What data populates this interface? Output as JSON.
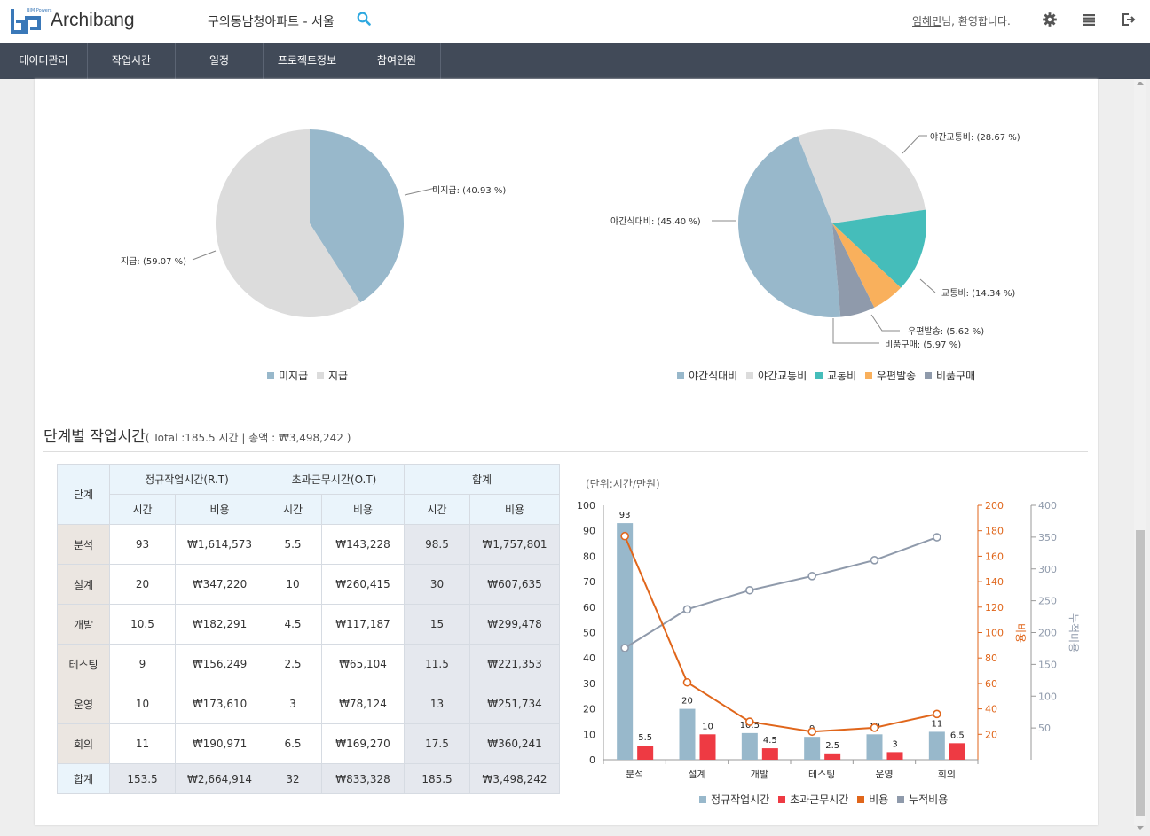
{
  "app": {
    "name": "Archibang",
    "logo_sub": "BIM Powers",
    "project": "구의동남청아파트 - 서울",
    "user_name": "임혜민",
    "greeting": "님, 환영합니다."
  },
  "nav": [
    "데이터관리",
    "작업시간",
    "일정",
    "프로젝트정보",
    "참여인원"
  ],
  "pie1": {
    "labels": [
      "미지급: (40.93 %)",
      "지급: (59.07 %)"
    ],
    "legend": [
      "미지급",
      "지급"
    ],
    "values": [
      40.93,
      59.07
    ],
    "colors": [
      "#98b8cb",
      "#dcdcdc"
    ]
  },
  "pie2": {
    "labels": [
      "야간식대비: (45.40 %)",
      "야간교통비: (28.67 %)",
      "교통비: (14.34 %)",
      "우편발송: (5.62 %)",
      "비품구매: (5.97 %)"
    ],
    "legend": [
      "야간식대비",
      "야간교통비",
      "교통비",
      "우편발송",
      "비품구매"
    ],
    "values": [
      45.4,
      28.67,
      14.34,
      5.62,
      5.97
    ],
    "colors": [
      "#98b8cb",
      "#dcdcdc",
      "#45bdba",
      "#f9b05c",
      "#8f9aab"
    ]
  },
  "section": {
    "title": "단계별 작업시간",
    "subtitle": "( Total :185.5 시간 | 총액 : ₩3,498,242 )"
  },
  "table": {
    "h_stage": "단계",
    "h_rt": "정규작업시간(R.T)",
    "h_ot": "초과근무시간(O.T)",
    "h_sum": "합계",
    "h_time": "시간",
    "h_cost": "비용",
    "rows": [
      {
        "stage": "분석",
        "rt_h": "93",
        "rt_c": "₩1,614,573",
        "ot_h": "5.5",
        "ot_c": "₩143,228",
        "s_h": "98.5",
        "s_c": "₩1,757,801"
      },
      {
        "stage": "설계",
        "rt_h": "20",
        "rt_c": "₩347,220",
        "ot_h": "10",
        "ot_c": "₩260,415",
        "s_h": "30",
        "s_c": "₩607,635"
      },
      {
        "stage": "개발",
        "rt_h": "10.5",
        "rt_c": "₩182,291",
        "ot_h": "4.5",
        "ot_c": "₩117,187",
        "s_h": "15",
        "s_c": "₩299,478"
      },
      {
        "stage": "테스팅",
        "rt_h": "9",
        "rt_c": "₩156,249",
        "ot_h": "2.5",
        "ot_c": "₩65,104",
        "s_h": "11.5",
        "s_c": "₩221,353"
      },
      {
        "stage": "운영",
        "rt_h": "10",
        "rt_c": "₩173,610",
        "ot_h": "3",
        "ot_c": "₩78,124",
        "s_h": "13",
        "s_c": "₩251,734"
      },
      {
        "stage": "회의",
        "rt_h": "11",
        "rt_c": "₩190,971",
        "ot_h": "6.5",
        "ot_c": "₩169,270",
        "s_h": "17.5",
        "s_c": "₩360,241"
      }
    ],
    "total": {
      "stage": "합계",
      "rt_h": "153.5",
      "rt_c": "₩2,664,914",
      "ot_h": "32",
      "ot_c": "₩833,328",
      "s_h": "185.5",
      "s_c": "₩3,498,242"
    }
  },
  "chart_data": {
    "type": "bar",
    "unit_label": "(단위:시간/만원)",
    "categories": [
      "분석",
      "설계",
      "개발",
      "테스팅",
      "운영",
      "회의"
    ],
    "series": [
      {
        "name": "정규작업시간",
        "kind": "bar",
        "axis": "left",
        "color": "#98b8cb",
        "values": [
          93,
          20,
          10.5,
          9,
          10,
          11
        ]
      },
      {
        "name": "초과근무시간",
        "kind": "bar",
        "axis": "left",
        "color": "#ee3a43",
        "values": [
          5.5,
          10,
          4.5,
          2.5,
          3,
          6.5
        ]
      },
      {
        "name": "비용",
        "kind": "line",
        "axis": "right1",
        "color": "#e0661b",
        "values": [
          175.8,
          60.8,
          29.9,
          22.1,
          25.2,
          36.0
        ]
      },
      {
        "name": "누적비용",
        "kind": "line",
        "axis": "right2",
        "color": "#8f9aab",
        "values": [
          175.8,
          236.5,
          266.5,
          288.7,
          313.8,
          349.8
        ]
      }
    ],
    "left_axis": {
      "min": 0,
      "max": 100,
      "ticks": [
        "0",
        "10",
        "20",
        "30",
        "40",
        "50",
        "60",
        "70",
        "80",
        "90",
        "100"
      ]
    },
    "right1_axis": {
      "label": "비용",
      "min": 0,
      "max": 200,
      "ticks": [
        "20",
        "40",
        "60",
        "80",
        "100",
        "120",
        "140",
        "160",
        "180",
        "200"
      ]
    },
    "right2_axis": {
      "label": "누적비용",
      "min": 0,
      "max": 400,
      "ticks": [
        "50",
        "100",
        "150",
        "200",
        "250",
        "300",
        "350",
        "400"
      ]
    }
  }
}
